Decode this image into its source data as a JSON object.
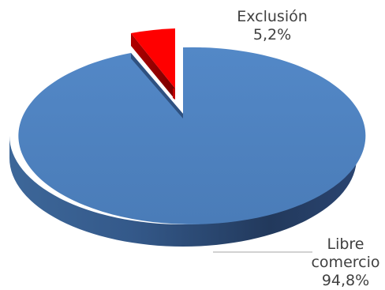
{
  "chart_data": {
    "type": "pie",
    "title": "",
    "slices": [
      {
        "label": "Exclusión",
        "value_label": "5,2%",
        "value": 5.2,
        "color": "#ff0000"
      },
      {
        "label": "Libre comercio",
        "label_lines": [
          "Libre",
          "comercio"
        ],
        "value_label": "94,8%",
        "value": 94.8,
        "color": "#4f81bd"
      }
    ],
    "legend": "none",
    "style": "3d-exploded"
  }
}
